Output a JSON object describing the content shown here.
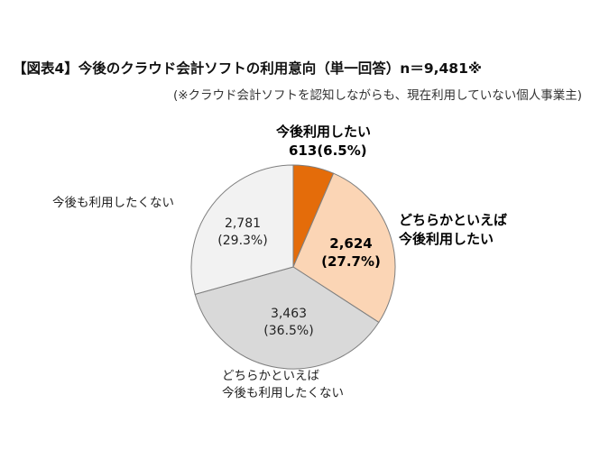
{
  "title": "【図表4】今後のクラウド会計ソフトの利用意向（単一回答）n＝9,481※",
  "subtitle": "(※クラウド会計ソフトを認知しながらも、現在利用していない個人事業主)",
  "chart_data": {
    "type": "pie",
    "total": 9481,
    "start_angle_deg": 0,
    "direction": "clockwise",
    "slices": [
      {
        "name_lines": [
          "今後利用したい"
        ],
        "value": 613,
        "value_label": "613",
        "percent_label": "(6.5%)",
        "color": "#E46C0A",
        "label_position": "outside",
        "emphasis": true
      },
      {
        "name_lines": [
          "どちらかといえば",
          "今後利用したい"
        ],
        "value": 2624,
        "value_label": "2,624",
        "percent_label": "(27.7%)",
        "color": "#FBD5B5",
        "label_position": "inside",
        "emphasis": true
      },
      {
        "name_lines": [
          "どちらかといえば",
          "今後も利用したくない"
        ],
        "value": 3463,
        "value_label": "3,463",
        "percent_label": "(36.5%)",
        "color": "#D9D9D9",
        "label_position": "inside",
        "emphasis": false
      },
      {
        "name_lines": [
          "今後も利用したくない"
        ],
        "value": 2781,
        "value_label": "2,781",
        "percent_label": "(29.3%)",
        "color": "#F2F2F2",
        "label_position": "inside",
        "emphasis": false
      }
    ]
  }
}
